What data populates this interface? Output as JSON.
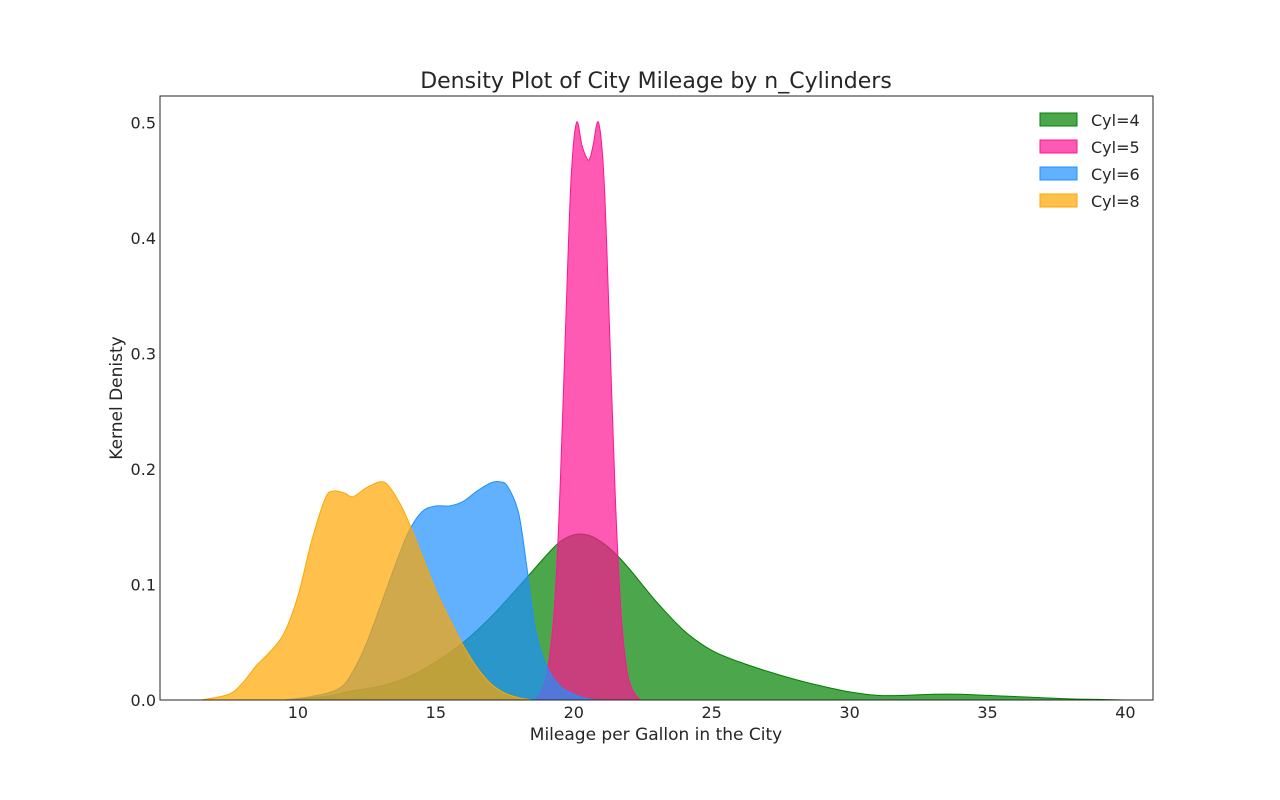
{
  "chart_data": {
    "type": "area",
    "title": "Density Plot of City Mileage by n_Cylinders",
    "xlabel": "Mileage per Gallon in the City",
    "ylabel": "Kernel Denisty",
    "xlim": [
      5,
      41
    ],
    "ylim": [
      0,
      0.523
    ],
    "xticks": [
      10,
      15,
      20,
      25,
      30,
      35,
      40
    ],
    "yticks": [
      0.0,
      0.1,
      0.2,
      0.3,
      0.4,
      0.5
    ],
    "xtick_labels": [
      "10",
      "15",
      "20",
      "25",
      "30",
      "35",
      "40"
    ],
    "ytick_labels": [
      "0.0",
      "0.1",
      "0.2",
      "0.3",
      "0.4",
      "0.5"
    ],
    "grid": false,
    "legend_position": "top-right",
    "series": [
      {
        "name": "Cyl=4",
        "color": "#008000",
        "opacity": 0.7,
        "x": [
          9.5,
          11,
          12,
          13,
          14,
          15,
          16,
          17,
          18,
          19,
          19.5,
          20,
          20.5,
          21,
          21.5,
          22,
          23,
          24,
          25,
          26,
          27,
          28,
          29,
          30,
          31,
          32,
          33,
          34,
          35,
          36,
          37,
          38,
          39,
          40
        ],
        "y": [
          0,
          0.003,
          0.008,
          0.012,
          0.02,
          0.033,
          0.05,
          0.072,
          0.098,
          0.125,
          0.137,
          0.143,
          0.143,
          0.137,
          0.127,
          0.114,
          0.085,
          0.06,
          0.043,
          0.033,
          0.025,
          0.018,
          0.012,
          0.007,
          0.004,
          0.004,
          0.005,
          0.005,
          0.004,
          0.003,
          0.002,
          0.001,
          0.0005,
          0
        ]
      },
      {
        "name": "Cyl=5",
        "color": "#ff1493",
        "opacity": 0.7,
        "x": [
          18.6,
          19,
          19.3,
          19.5,
          19.7,
          19.9,
          20.1,
          20.3,
          20.5,
          20.6,
          20.7,
          20.9,
          21.1,
          21.3,
          21.5,
          21.7,
          21.9,
          22.1,
          22.4
        ],
        "y": [
          0,
          0.02,
          0.08,
          0.18,
          0.32,
          0.45,
          0.5,
          0.48,
          0.468,
          0.47,
          0.48,
          0.5,
          0.45,
          0.32,
          0.18,
          0.08,
          0.03,
          0.01,
          0
        ]
      },
      {
        "name": "Cyl=6",
        "color": "#1e90ff",
        "opacity": 0.7,
        "x": [
          9.5,
          10.5,
          11.5,
          12,
          12.5,
          13,
          13.5,
          14,
          14.5,
          15,
          15.5,
          16,
          16.5,
          17,
          17.3,
          17.6,
          18,
          18.3,
          18.6,
          19,
          19.5,
          20,
          20.5,
          21
        ],
        "y": [
          0,
          0.003,
          0.01,
          0.025,
          0.05,
          0.082,
          0.115,
          0.145,
          0.163,
          0.168,
          0.168,
          0.172,
          0.181,
          0.188,
          0.189,
          0.185,
          0.162,
          0.115,
          0.062,
          0.03,
          0.012,
          0.005,
          0.001,
          0
        ]
      },
      {
        "name": "Cyl=8",
        "color": "#ffa500",
        "opacity": 0.7,
        "x": [
          6.5,
          7.5,
          8,
          8.5,
          9,
          9.5,
          10,
          10.5,
          11,
          11.3,
          11.7,
          12,
          12.5,
          13,
          13.3,
          13.7,
          14,
          14.5,
          15,
          15.5,
          16,
          16.5,
          17,
          17.5,
          18,
          18.5
        ],
        "y": [
          0,
          0.005,
          0.015,
          0.03,
          0.042,
          0.058,
          0.09,
          0.138,
          0.175,
          0.181,
          0.179,
          0.176,
          0.184,
          0.189,
          0.185,
          0.17,
          0.155,
          0.125,
          0.095,
          0.07,
          0.047,
          0.028,
          0.014,
          0.006,
          0.002,
          0
        ]
      }
    ]
  },
  "colors": {
    "frame": "#262626",
    "text": "#262626"
  }
}
